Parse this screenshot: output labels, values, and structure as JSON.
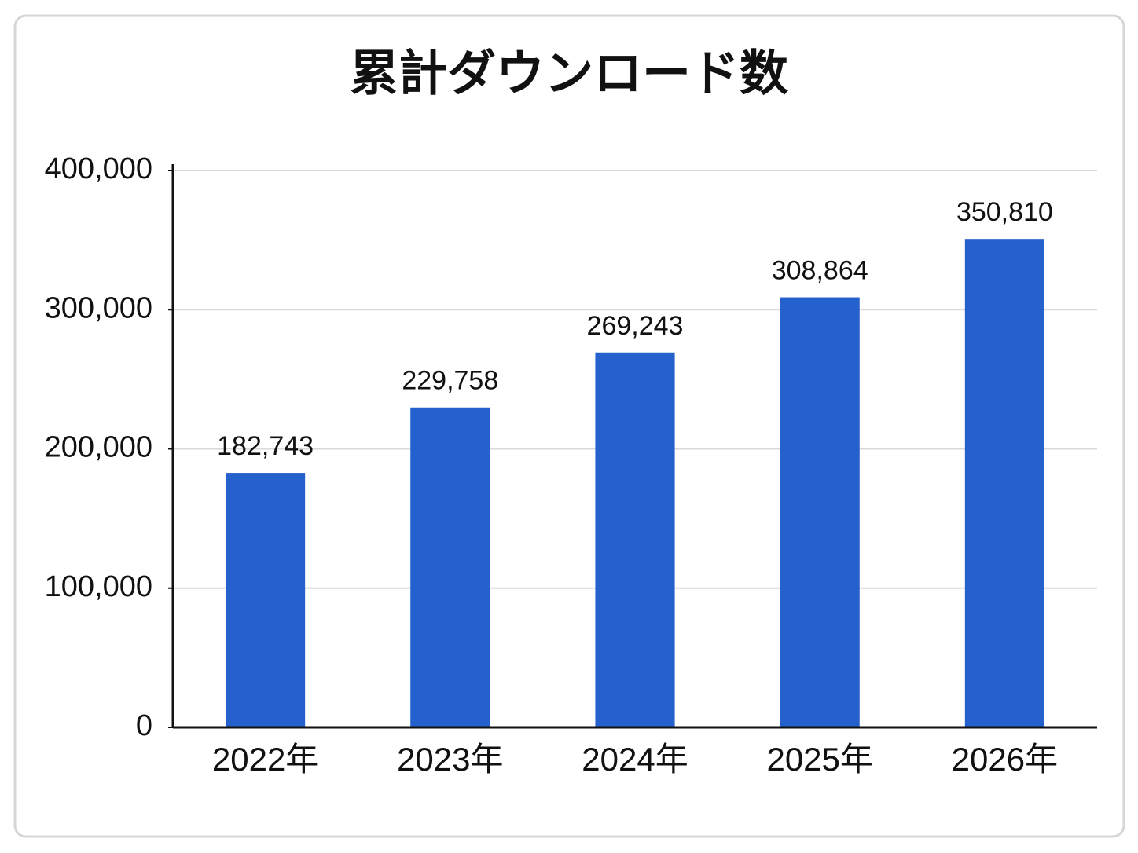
{
  "chart_data": {
    "type": "bar",
    "title": "累計ダウンロード数",
    "categories": [
      "2022年",
      "2023年",
      "2024年",
      "2025年",
      "2026年"
    ],
    "values": [
      182743,
      229758,
      269243,
      308864,
      350810
    ],
    "value_labels": [
      "182,743",
      "229,758",
      "269,243",
      "308,864",
      "350,810"
    ],
    "color": "#2461cc",
    "ylim": [
      0,
      400000
    ],
    "yticks": [
      0,
      {
        "value": 100000,
        "label": "100,000"
      },
      {
        "value": 200000,
        "label": "200,000"
      },
      {
        "value": 300000,
        "label": "300,000"
      },
      {
        "value": 400000,
        "label": "400,000"
      }
    ],
    "grid": true
  }
}
